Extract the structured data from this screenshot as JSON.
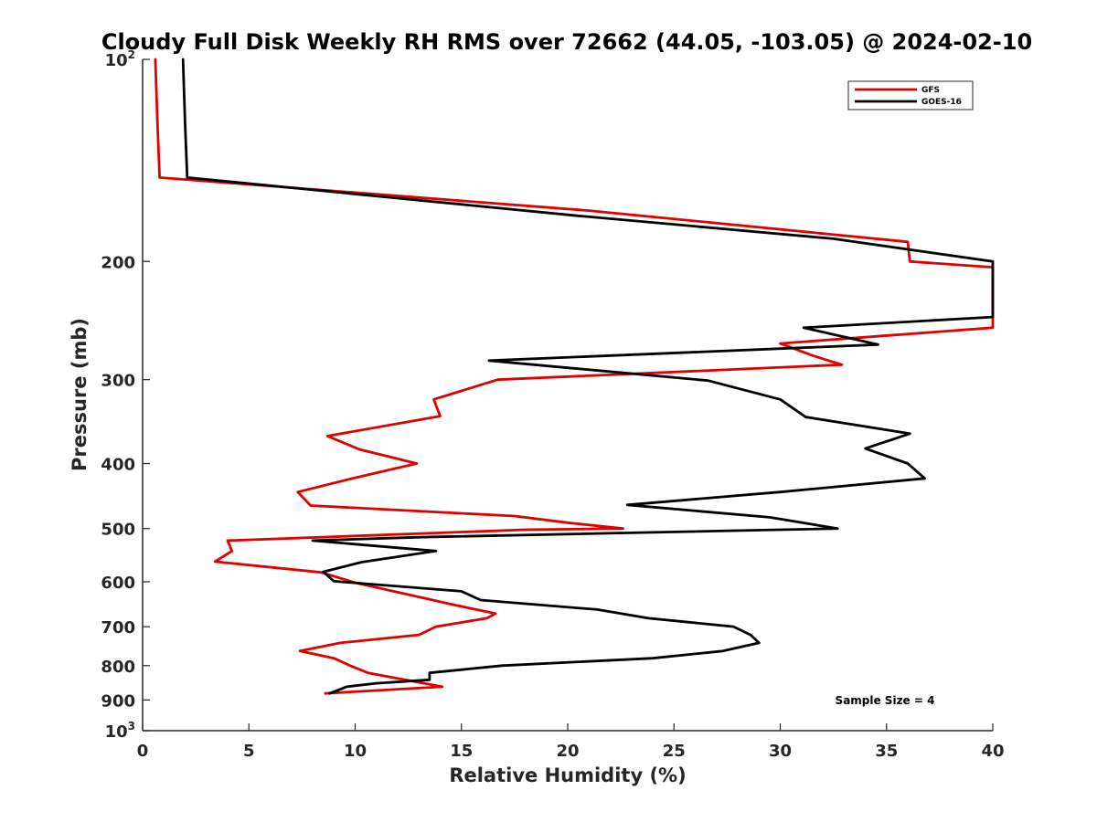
{
  "chart_data": {
    "type": "line",
    "title": "Cloudy Full Disk Weekly RH RMS over 72662 (44.05, -103.05) @ 2024-02-10",
    "xlabel": "Relative Humidity (%)",
    "ylabel": "Pressure (mb)",
    "xlim": [
      0,
      40
    ],
    "ylim": [
      100,
      1000
    ],
    "y_scale": "log",
    "y_reversed": true,
    "grid": false,
    "legend_position": "top-right",
    "x_ticks": [
      0,
      5,
      10,
      15,
      20,
      25,
      30,
      35,
      40
    ],
    "y_ticks": [
      {
        "value": 100,
        "base": "10",
        "exp": "2"
      },
      {
        "value": 200,
        "label": "200"
      },
      {
        "value": 300,
        "label": "300"
      },
      {
        "value": 400,
        "label": "400"
      },
      {
        "value": 500,
        "label": "500"
      },
      {
        "value": 600,
        "label": "600"
      },
      {
        "value": 700,
        "label": "700"
      },
      {
        "value": 800,
        "label": "800"
      },
      {
        "value": 900,
        "label": "900"
      },
      {
        "value": 1000,
        "base": "10",
        "exp": "3"
      }
    ],
    "annotation": "Sample Size = 4",
    "series": [
      {
        "name": "GFS",
        "color": "#e00000",
        "points": [
          [
            0.6,
            100
          ],
          [
            0.7,
            125
          ],
          [
            0.8,
            150
          ],
          [
            21,
            168
          ],
          [
            36.0,
            187
          ],
          [
            36.1,
            200
          ],
          [
            40,
            204
          ],
          [
            40,
            251
          ],
          [
            30.0,
            265
          ],
          [
            31.5,
            276
          ],
          [
            32.9,
            285
          ],
          [
            16.7,
            300
          ],
          [
            13.7,
            321
          ],
          [
            14.0,
            340
          ],
          [
            8.7,
            364
          ],
          [
            10.2,
            381
          ],
          [
            12.9,
            400
          ],
          [
            10.0,
            420
          ],
          [
            7.3,
            441
          ],
          [
            7.9,
            462
          ],
          [
            17.5,
            479
          ],
          [
            20.0,
            490
          ],
          [
            22.6,
            500
          ],
          [
            18.0,
            502
          ],
          [
            4.0,
            521
          ],
          [
            4.2,
            540
          ],
          [
            3.4,
            560
          ],
          [
            8.4,
            581
          ],
          [
            10.0,
            602
          ],
          [
            11.8,
            620
          ],
          [
            14.8,
            651
          ],
          [
            16.6,
            669
          ],
          [
            16.2,
            680
          ],
          [
            13.8,
            700
          ],
          [
            13.0,
            720
          ],
          [
            9.3,
            740
          ],
          [
            7.4,
            761
          ],
          [
            9.0,
            780
          ],
          [
            9.8,
            801
          ],
          [
            10.6,
            820
          ],
          [
            14.1,
            860
          ],
          [
            8.6,
            880
          ]
        ]
      },
      {
        "name": "GOES-16",
        "color": "#000000",
        "points": [
          [
            1.9,
            100
          ],
          [
            2.0,
            125
          ],
          [
            2.1,
            150
          ],
          [
            20.5,
            171
          ],
          [
            32.5,
            185
          ],
          [
            40,
            200
          ],
          [
            40,
            242
          ],
          [
            31.1,
            251
          ],
          [
            34.6,
            266
          ],
          [
            16.3,
            281
          ],
          [
            26.6,
            301
          ],
          [
            30.0,
            321
          ],
          [
            31.2,
            341
          ],
          [
            36.1,
            361
          ],
          [
            34.0,
            380
          ],
          [
            36.0,
            400
          ],
          [
            36.8,
            421
          ],
          [
            30.0,
            441
          ],
          [
            22.8,
            461
          ],
          [
            29.5,
            481
          ],
          [
            32.7,
            500
          ],
          [
            13.0,
            515
          ],
          [
            8.0,
            521
          ],
          [
            13.8,
            540
          ],
          [
            10.3,
            561
          ],
          [
            8.5,
            580
          ],
          [
            9.0,
            599
          ],
          [
            15.0,
            620
          ],
          [
            15.9,
            639
          ],
          [
            21.4,
            660
          ],
          [
            23.8,
            680
          ],
          [
            27.8,
            700
          ],
          [
            28.6,
            720
          ],
          [
            29.0,
            740
          ],
          [
            27.3,
            761
          ],
          [
            24.0,
            780
          ],
          [
            16.9,
            800
          ],
          [
            13.5,
            820
          ],
          [
            13.5,
            840
          ],
          [
            11.0,
            850
          ],
          [
            9.6,
            860
          ],
          [
            8.8,
            880
          ]
        ]
      }
    ]
  }
}
